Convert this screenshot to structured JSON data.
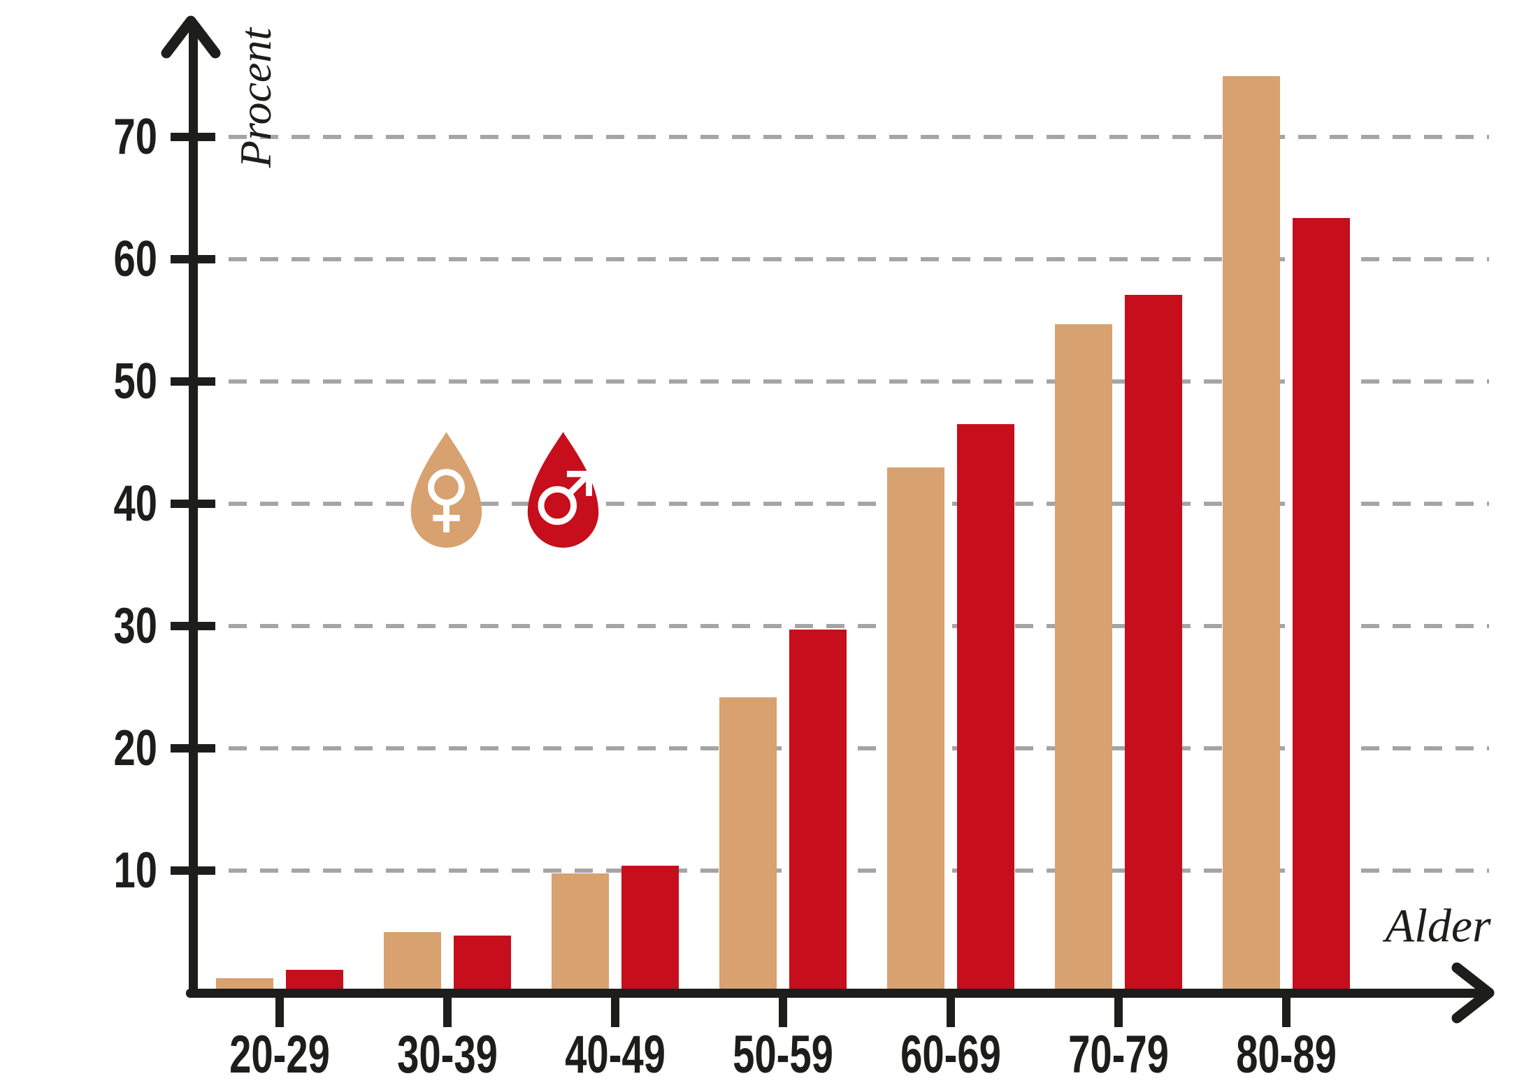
{
  "chart_data": {
    "type": "bar",
    "title": "",
    "categories": [
      "20-29",
      "30-39",
      "40-49",
      "50-59",
      "60-69",
      "70-79",
      "80-89"
    ],
    "series": [
      {
        "name": "female",
        "legend_symbol": "♀",
        "color": "#d8a170",
        "values": [
          1.2,
          5.0,
          9.8,
          24.2,
          43.0,
          54.7,
          75.0
        ]
      },
      {
        "name": "male",
        "legend_symbol": "♂",
        "color": "#c60e1c",
        "values": [
          1.9,
          4.7,
          10.4,
          29.7,
          46.5,
          57.1,
          63.4
        ]
      }
    ],
    "xlabel": "Alder",
    "ylabel": "Procent",
    "ylim": [
      0,
      78
    ],
    "yticks": [
      10,
      20,
      30,
      40,
      50,
      60,
      70
    ],
    "grid": "horizontal-dashed",
    "legend_position": "inside-left-middle"
  },
  "colors": {
    "axis": "#1d1d1b",
    "gridline": "#a5a5a5",
    "background": "#ffffff",
    "legend_symbol": "#ffffff"
  }
}
